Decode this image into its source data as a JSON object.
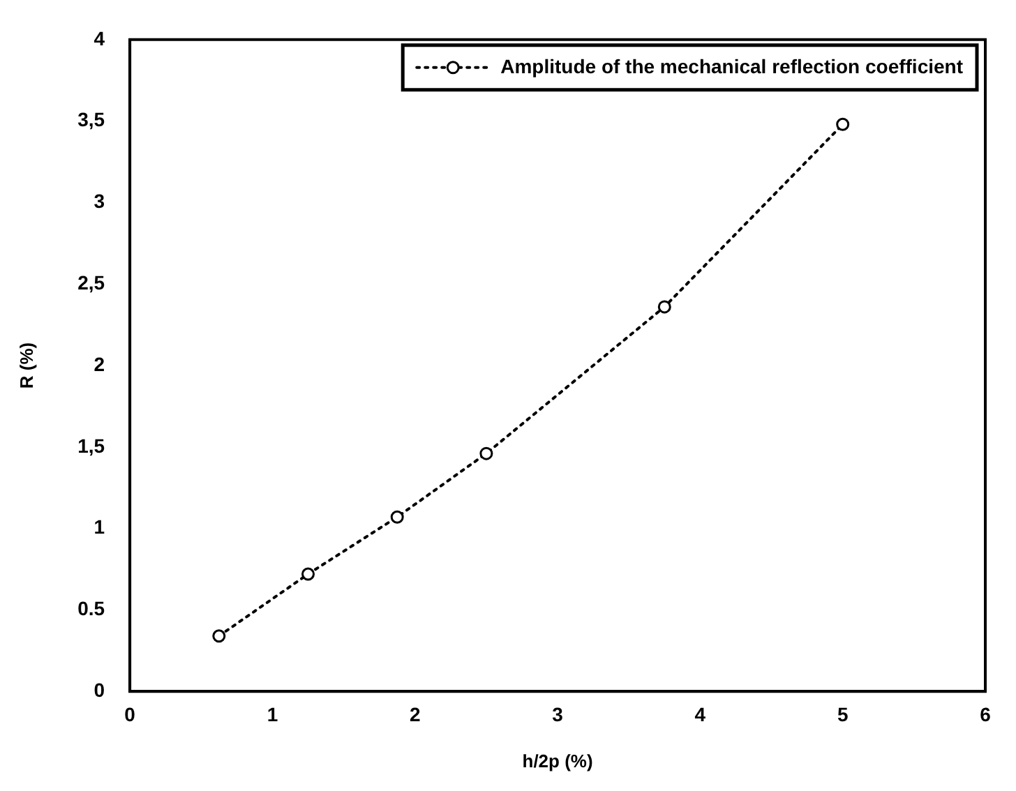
{
  "chart_data": {
    "type": "line",
    "xlabel": "h/2p (%)",
    "ylabel": "R (%)",
    "x": [
      0.625,
      1.25,
      1.875,
      2.5,
      3.75,
      5
    ],
    "series": [
      {
        "name": "Amplitude of the mechanical reflection coefficient",
        "color": "#000000",
        "values": [
          0.34,
          0.72,
          1.07,
          1.46,
          2.36,
          3.48
        ]
      }
    ],
    "xlim": [
      0,
      6
    ],
    "xticks": [
      0,
      1,
      2,
      3,
      4,
      5,
      6
    ],
    "ylim": [
      0,
      4
    ],
    "yticks": [
      0,
      0.5,
      1,
      {
        "value": 1.5,
        "label": "1,5"
      },
      2,
      {
        "value": 2.5,
        "label": "2,5"
      },
      3,
      {
        "value": 3.5,
        "label": "3,5"
      },
      4
    ],
    "grid": false,
    "legend": "top right",
    "marker": "circle",
    "line_style": "dotted"
  }
}
